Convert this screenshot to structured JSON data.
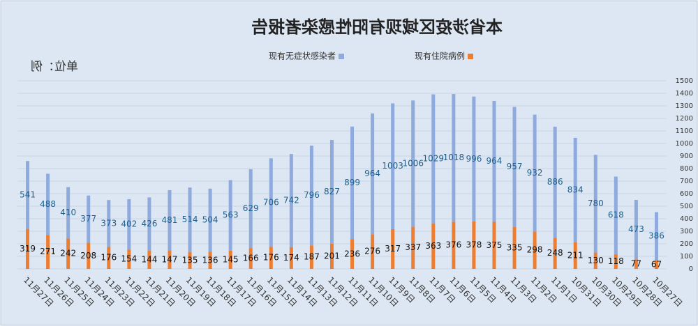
{
  "chart_data": {
    "type": "stacked-bar",
    "title": "本省涉疫区域现有阳性感染者报告",
    "unit_label": "单位：例",
    "categories": [
      "10月27日",
      "10月28日",
      "10月29日",
      "10月30日",
      "10月31日",
      "11月1日",
      "11月2日",
      "11月3日",
      "11月4日",
      "11月5日",
      "11月6日",
      "11月7日",
      "11月8日",
      "11月9日",
      "11月10日",
      "11月11日",
      "11月12日",
      "11月13日",
      "11月14日",
      "11月15日",
      "11月16日",
      "11月17日",
      "11月18日",
      "11月19日",
      "11月20日",
      "11月21日",
      "11月22日",
      "11月23日",
      "11月24日",
      "11月25日",
      "11月26日",
      "11月27日"
    ],
    "series": [
      {
        "name": "现有住院病例",
        "color": "#ed7d31",
        "values": [
          67,
          77,
          118,
          130,
          211,
          248,
          298,
          335,
          375,
          378,
          376,
          363,
          337,
          317,
          276,
          236,
          201,
          187,
          174,
          176,
          166,
          145,
          136,
          135,
          147,
          144,
          154,
          176,
          208,
          242,
          271,
          319
        ]
      },
      {
        "name": "现有无症状感染者",
        "color": "#8faadc",
        "values": [
          386,
          473,
          618,
          780,
          834,
          886,
          932,
          957,
          964,
          996,
          1018,
          1029,
          1006,
          1003,
          964,
          899,
          827,
          796,
          742,
          706,
          629,
          563,
          504,
          514,
          481,
          426,
          402,
          373,
          377,
          410,
          488,
          541
        ]
      }
    ],
    "ylim": [
      0,
      1500
    ],
    "yticks": [
      0,
      100,
      200,
      300,
      400,
      500,
      600,
      700,
      800,
      900,
      1000,
      1100,
      1200,
      1300,
      1400,
      1500
    ],
    "grid": true
  }
}
